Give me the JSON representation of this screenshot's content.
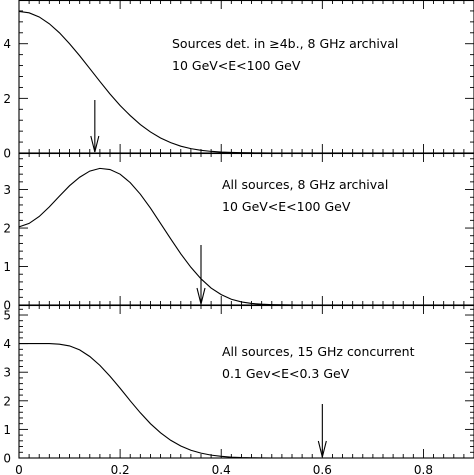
{
  "chart_data": [
    {
      "type": "line",
      "xlim": [
        0,
        0.9
      ],
      "ylim": [
        0,
        5.6
      ],
      "x_ticks": [
        "0",
        "0.2",
        "0.4",
        "0.6",
        "0.8"
      ],
      "y_ticks": [
        "0",
        "2",
        "4"
      ],
      "y_tick_values": [
        0,
        2,
        4
      ],
      "annotation": [
        "Sources det. in ≥4b., 8 GHz archival",
        "10 GeV<E<100 GeV"
      ],
      "series": [
        {
          "x": [
            0,
            0.02,
            0.04,
            0.06,
            0.08,
            0.1,
            0.12,
            0.14,
            0.16,
            0.18,
            0.2,
            0.22,
            0.24,
            0.26,
            0.28,
            0.3,
            0.32,
            0.34,
            0.36,
            0.38,
            0.4,
            0.42,
            0.44,
            0.46,
            0.48,
            0.5,
            0.55,
            0.6,
            0.7,
            0.8,
            0.9
          ],
          "y": [
            5.18,
            5.13,
            4.98,
            4.73,
            4.4,
            4.0,
            3.56,
            3.09,
            2.62,
            2.16,
            1.74,
            1.37,
            1.04,
            0.77,
            0.55,
            0.38,
            0.25,
            0.16,
            0.1,
            0.06,
            0.035,
            0.02,
            0.01,
            0.005,
            0.003,
            0.0,
            0.0,
            0.0,
            0.0,
            0.0,
            0.0
          ]
        }
      ],
      "marker_x": 0.15
    },
    {
      "type": "line",
      "xlim": [
        0,
        0.9
      ],
      "ylim": [
        0,
        3.95
      ],
      "x_ticks": [
        "0",
        "0.2",
        "0.4",
        "0.6",
        "0.8"
      ],
      "y_ticks": [
        "0",
        "1",
        "2",
        "3"
      ],
      "y_tick_values": [
        0,
        1,
        2,
        3
      ],
      "annotation": [
        "All sources, 8 GHz archival",
        "10 GeV<E<100 GeV"
      ],
      "series": [
        {
          "x": [
            0,
            0.02,
            0.04,
            0.06,
            0.08,
            0.1,
            0.12,
            0.14,
            0.16,
            0.18,
            0.2,
            0.22,
            0.24,
            0.26,
            0.28,
            0.3,
            0.32,
            0.34,
            0.36,
            0.38,
            0.4,
            0.42,
            0.44,
            0.46,
            0.48,
            0.5,
            0.52,
            0.55,
            0.6,
            0.7,
            0.8,
            0.9
          ],
          "y": [
            2.03,
            2.12,
            2.3,
            2.55,
            2.83,
            3.1,
            3.32,
            3.48,
            3.55,
            3.52,
            3.4,
            3.18,
            2.88,
            2.52,
            2.12,
            1.72,
            1.33,
            0.98,
            0.68,
            0.44,
            0.27,
            0.15,
            0.08,
            0.04,
            0.02,
            0.01,
            0.005,
            0.0,
            0.0,
            0.0,
            0.0,
            0.0
          ]
        }
      ],
      "marker_x": 0.36
    },
    {
      "type": "line",
      "xlim": [
        0,
        0.9
      ],
      "ylim": [
        0,
        5.35
      ],
      "x_ticks": [
        "0",
        "0.2",
        "0.4",
        "0.6",
        "0.8"
      ],
      "y_ticks": [
        "0",
        "1",
        "2",
        "3",
        "4",
        "5"
      ],
      "y_tick_values": [
        0,
        1,
        2,
        3,
        4,
        5
      ],
      "annotation": [
        "All sources, 15 GHz concurrent",
        "0.1 Gev<E<0.3 GeV"
      ],
      "series": [
        {
          "x": [
            0,
            0.02,
            0.04,
            0.06,
            0.08,
            0.1,
            0.12,
            0.14,
            0.16,
            0.18,
            0.2,
            0.22,
            0.24,
            0.26,
            0.28,
            0.3,
            0.32,
            0.34,
            0.36,
            0.38,
            0.4,
            0.42,
            0.44,
            0.46,
            0.48,
            0.5,
            0.55,
            0.6,
            0.7,
            0.8,
            0.9
          ],
          "y": [
            4.0,
            4.0,
            4.0,
            4.0,
            3.98,
            3.92,
            3.78,
            3.55,
            3.24,
            2.86,
            2.44,
            2.0,
            1.58,
            1.2,
            0.88,
            0.62,
            0.42,
            0.27,
            0.17,
            0.1,
            0.06,
            0.03,
            0.015,
            0.008,
            0.004,
            0.0,
            0.0,
            0.0,
            0.0,
            0.0,
            0.0
          ]
        }
      ],
      "marker_x": 0.6
    }
  ]
}
